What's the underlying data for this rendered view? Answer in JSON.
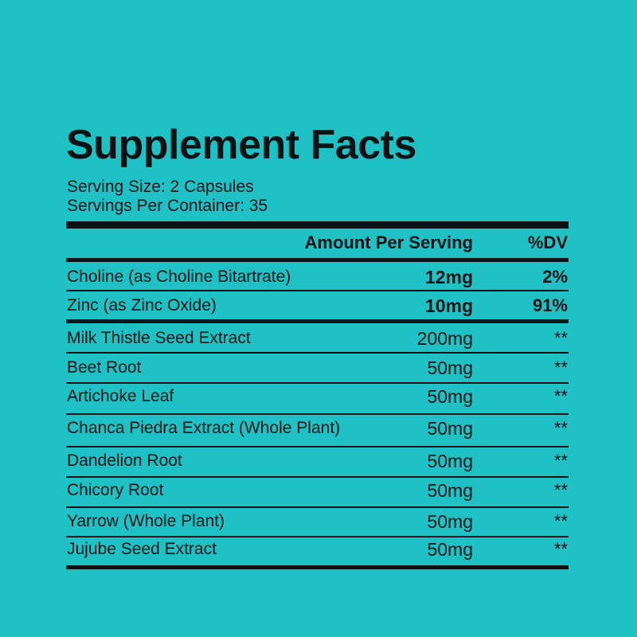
{
  "title": "Supplement Facts",
  "serving_size": "Serving Size: 2 Capsules",
  "servings_per_container": "Servings Per Container: 35",
  "header": {
    "amount": "Amount Per Serving",
    "dv": "%DV"
  },
  "rows": [
    {
      "name": "Choline (as Choline Bitartrate)",
      "amount": "12mg",
      "dv": "2%"
    },
    {
      "name": "Zinc (as Zinc Oxide)",
      "amount": "10mg",
      "dv": "91%"
    },
    {
      "name": "Milk Thistle Seed Extract",
      "amount": "200mg",
      "dv": "**"
    },
    {
      "name": "Beet Root",
      "amount": "50mg",
      "dv": "**"
    },
    {
      "name": "Artichoke Leaf",
      "amount": "50mg",
      "dv": "**"
    },
    {
      "name": "Chanca Piedra Extract (Whole Plant)",
      "amount": "50mg",
      "dv": "**"
    },
    {
      "name": "Dandelion Root",
      "amount": "50mg",
      "dv": "**"
    },
    {
      "name": "Chicory Root",
      "amount": "50mg",
      "dv": "**"
    },
    {
      "name": "Yarrow (Whole Plant)",
      "amount": "50mg",
      "dv": "**"
    },
    {
      "name": "Jujube Seed Extract",
      "amount": "50mg",
      "dv": "**"
    }
  ],
  "colors": {
    "background": "#1fc1c4",
    "text": "#0a1416"
  }
}
